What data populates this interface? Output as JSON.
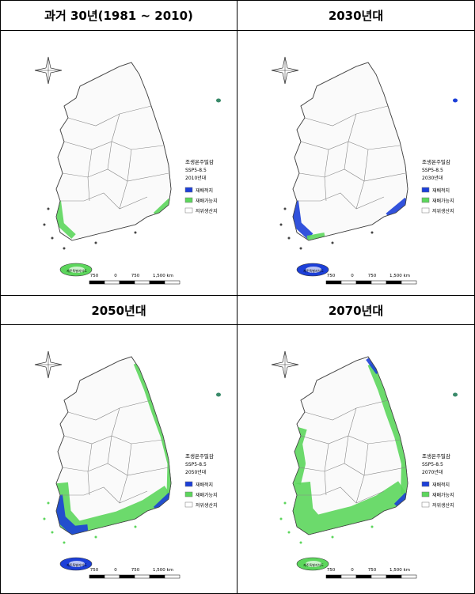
{
  "panels": [
    {
      "title": "과거 30년(1981 ~ 2010)",
      "legend_period": "2010년대"
    },
    {
      "title": "2030년대",
      "legend_period": "2030년대"
    },
    {
      "title": "2050년대",
      "legend_period": "2050년대"
    },
    {
      "title": "2070년대",
      "legend_period": "2070년대"
    }
  ],
  "legend": {
    "crop": "조생온주밀감",
    "scenario": "SSP5-8.5",
    "items": [
      "재배적지",
      "재배가능지",
      "저위생산지"
    ]
  },
  "scale_labels": [
    "750",
    "0",
    "750",
    "1,500 km"
  ],
  "jeju_label": "제주특별자치도"
}
